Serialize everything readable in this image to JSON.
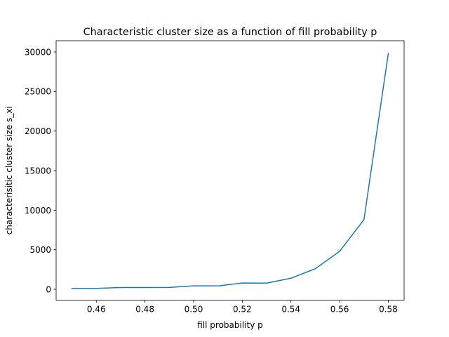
{
  "chart_data": {
    "type": "line",
    "title": "Characteristic cluster size as a function of fill probability p",
    "xlabel": "fill probability p",
    "ylabel": "characterisitic cluster size s_xi",
    "xlim": [
      0.4435,
      0.5865
    ],
    "ylim": [
      -1380,
      31420
    ],
    "x_ticks": [
      0.46,
      0.48,
      0.5,
      0.52,
      0.54,
      0.56,
      0.58
    ],
    "x_tick_labels": [
      "0.46",
      "0.48",
      "0.50",
      "0.52",
      "0.54",
      "0.56",
      "0.58"
    ],
    "y_ticks": [
      0,
      5000,
      10000,
      15000,
      20000,
      25000,
      30000
    ],
    "y_tick_labels": [
      "0",
      "5000",
      "10000",
      "15000",
      "20000",
      "25000",
      "30000"
    ],
    "grid": false,
    "series": [
      {
        "color": "#1f77b4",
        "x": [
          0.45,
          0.46,
          0.47,
          0.48,
          0.49,
          0.5,
          0.51,
          0.52,
          0.53,
          0.54,
          0.55,
          0.56,
          0.57,
          0.58
        ],
        "values": [
          120,
          110,
          230,
          230,
          240,
          440,
          430,
          790,
          780,
          1400,
          2600,
          4800,
          8800,
          29800
        ]
      }
    ]
  }
}
